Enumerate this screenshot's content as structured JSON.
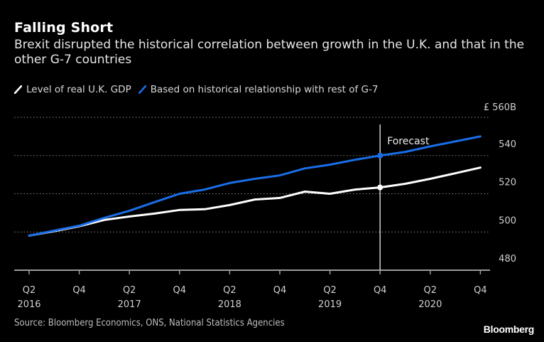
{
  "chart_data": {
    "type": "line",
    "title": "Falling Short",
    "subtitle": "Brexit disrupted the historical correlation between growth in the U.K. and that in the other G-7 countries",
    "xlabel": "",
    "ylabel": "",
    "y_unit_label": "£ 560B",
    "ylim": [
      480,
      560
    ],
    "yticks": [
      480,
      500,
      520,
      540,
      560
    ],
    "ytick_labels": [
      "480",
      "500",
      "520",
      "540",
      "£ 560B"
    ],
    "grid": true,
    "legend_position": "top-left",
    "x": [
      "Q2 2016",
      "Q3 2016",
      "Q4 2016",
      "Q1 2017",
      "Q2 2017",
      "Q3 2017",
      "Q4 2017",
      "Q1 2018",
      "Q2 2018",
      "Q3 2018",
      "Q4 2018",
      "Q1 2019",
      "Q2 2019",
      "Q3 2019",
      "Q4 2019",
      "Q1 2020",
      "Q2 2020",
      "Q3 2020",
      "Q4 2020"
    ],
    "xticks": [
      {
        "index": 0,
        "quarter": "Q2",
        "year": "2016"
      },
      {
        "index": 2,
        "quarter": "Q4",
        "year": ""
      },
      {
        "index": 4,
        "quarter": "Q2",
        "year": "2017"
      },
      {
        "index": 6,
        "quarter": "Q4",
        "year": ""
      },
      {
        "index": 8,
        "quarter": "Q2",
        "year": "2018"
      },
      {
        "index": 10,
        "quarter": "Q4",
        "year": ""
      },
      {
        "index": 12,
        "quarter": "Q2",
        "year": "2019"
      },
      {
        "index": 14,
        "quarter": "Q4",
        "year": ""
      },
      {
        "index": 16,
        "quarter": "Q2",
        "year": "2020"
      },
      {
        "index": 18,
        "quarter": "Q4",
        "year": ""
      }
    ],
    "series": [
      {
        "name": "Level of real U.K. GDP",
        "color": "#ffffff",
        "values": [
          498.1,
          500.4,
          503.0,
          506.3,
          508.1,
          509.6,
          511.5,
          511.9,
          514.1,
          517.0,
          517.8,
          521.1,
          520.0,
          522.2,
          523.3,
          525.2,
          527.8,
          530.7,
          533.7
        ]
      },
      {
        "name": "Based on historical relationship with rest of G-7",
        "color": "#1a6ee8",
        "values": [
          498.1,
          500.7,
          503.3,
          507.4,
          511.1,
          515.6,
          520.0,
          522.2,
          525.6,
          527.8,
          529.6,
          533.3,
          535.2,
          537.8,
          540.0,
          541.9,
          544.8,
          547.4,
          550.0
        ]
      }
    ],
    "annotations": [
      {
        "text": "Forecast",
        "at_index": 14,
        "type": "vertical-line",
        "markers": true
      }
    ]
  },
  "footer": {
    "source": "Source: Bloomberg Economics, ONS, National Statistics Agencies",
    "brand": "Bloomberg"
  }
}
